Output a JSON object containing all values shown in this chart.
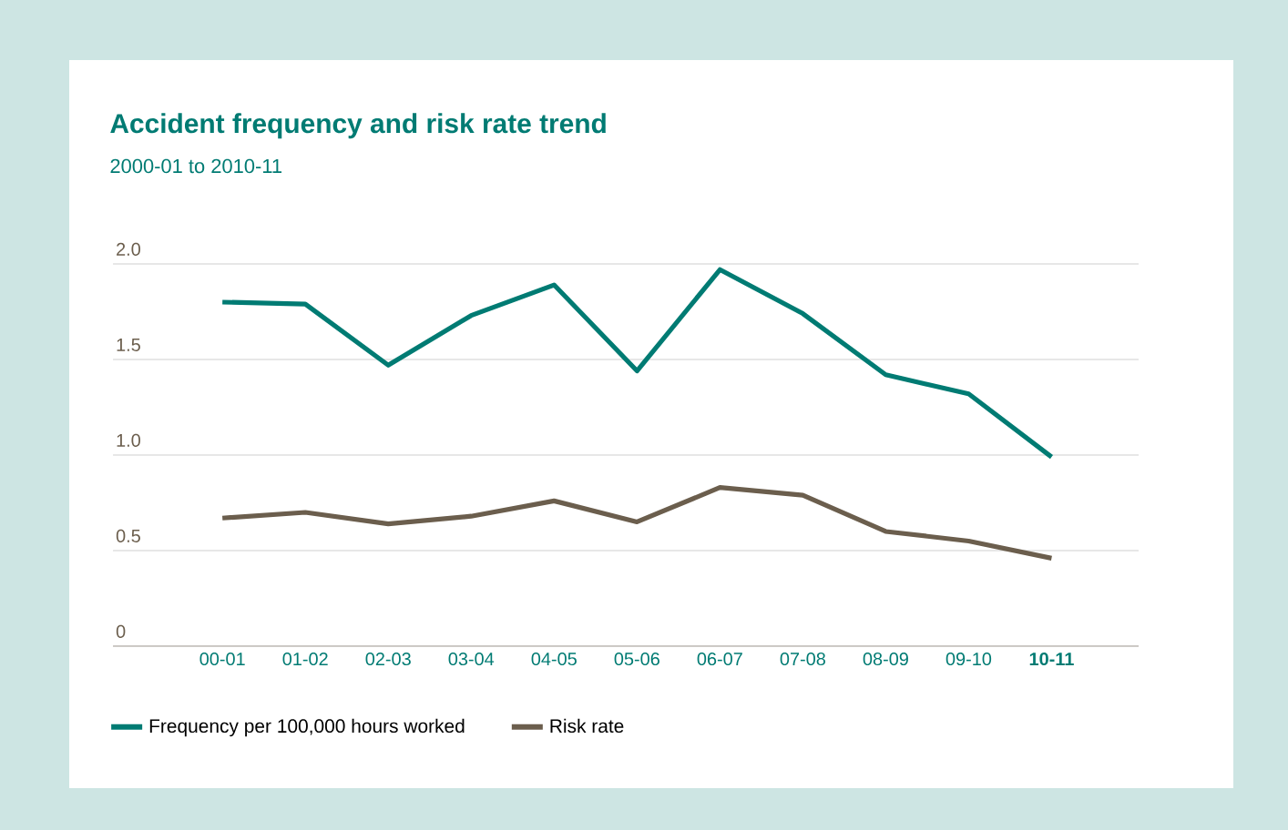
{
  "chart_data": {
    "type": "line",
    "title": "Accident frequency and risk rate trend",
    "subtitle": "2000-01 to 2010-11",
    "categories": [
      "00-01",
      "01-02",
      "02-03",
      "03-04",
      "04-05",
      "05-06",
      "06-07",
      "07-08",
      "08-09",
      "09-10",
      "10-11"
    ],
    "series": [
      {
        "name": "Frequency per 100,000 hours worked",
        "color": "#007b73",
        "values": [
          1.8,
          1.79,
          1.47,
          1.73,
          1.89,
          1.44,
          1.97,
          1.74,
          1.42,
          1.32,
          0.99
        ]
      },
      {
        "name": "Risk rate",
        "color": "#6b5e4d",
        "values": [
          0.67,
          0.7,
          0.64,
          0.68,
          0.76,
          0.65,
          0.83,
          0.79,
          0.6,
          0.55,
          0.46
        ]
      }
    ],
    "ylim": [
      0,
      2.0
    ],
    "yticks": [
      0,
      0.5,
      {
        "value": 1,
        "label": "1.0"
      },
      1.5,
      {
        "value": 2,
        "label": "2.0"
      }
    ],
    "grid": "y",
    "legend": "bottom",
    "marker": "none",
    "line_style": "solid"
  }
}
